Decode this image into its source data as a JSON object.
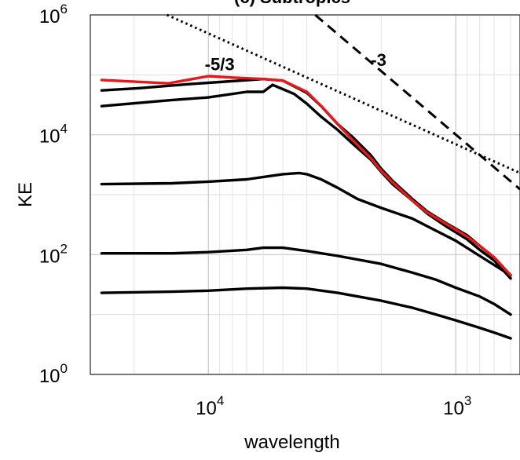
{
  "chart_data": {
    "type": "line",
    "title": "(c) Subtropics",
    "xlabel": "wavelength",
    "ylabel": "KE",
    "x_scale": "log",
    "x_reversed": true,
    "y_scale": "log",
    "xlim": [
      30000,
      550
    ],
    "ylim": [
      1,
      1000000
    ],
    "grid": true,
    "x_ticks": [
      {
        "value": 10000,
        "base": "10",
        "exp": "4"
      },
      {
        "value": 1000,
        "base": "10",
        "exp": "3"
      }
    ],
    "y_ticks": [
      {
        "value": 1,
        "base": "10",
        "exp": "0"
      },
      {
        "value": 100,
        "base": "10",
        "exp": "2"
      },
      {
        "value": 10000,
        "base": "10",
        "exp": "4"
      },
      {
        "value": 1000000,
        "base": "10",
        "exp": "6"
      }
    ],
    "annotations": [
      {
        "text": "-5/3",
        "x": 9000,
        "y": 120000
      },
      {
        "text": "-3",
        "x": 2050,
        "y": 140000
      }
    ],
    "reference_lines": [
      {
        "label": "-5/3",
        "style": "dotted",
        "x": [
          14700,
          550
        ],
        "y": [
          1000000,
          2300
        ]
      },
      {
        "label": "-3",
        "style": "dashed",
        "x": [
          3700,
          550
        ],
        "y": [
          1000000,
          1230
        ]
      }
    ],
    "colors": {
      "red_series": "#e31a1c",
      "black_series": "#000000",
      "grid": "#d9d9d9"
    },
    "series": [
      {
        "color": "#e31a1c",
        "x": [
          27000,
          14500,
          10000,
          8000,
          6000,
          5000,
          4000,
          3500,
          3000,
          2600,
          2200,
          2000,
          1800,
          1500,
          1300,
          1100,
          900,
          800,
          700,
          600
        ],
        "y": [
          82000,
          72000,
          95000,
          90000,
          85000,
          80000,
          52000,
          30000,
          15000,
          8000,
          4000,
          2500,
          1600,
          800,
          500,
          330,
          200,
          140,
          90,
          45
        ]
      },
      {
        "color": "#000000",
        "x": [
          27000,
          19000,
          12000,
          6000,
          5000,
          4000,
          3500,
          3000,
          2600,
          2200,
          2000,
          1800,
          1500,
          1300,
          1100,
          900,
          800,
          700,
          600
        ],
        "y": [
          55000,
          60000,
          70000,
          85000,
          80000,
          50000,
          30000,
          15000,
          9000,
          4500,
          2700,
          1700,
          850,
          520,
          340,
          210,
          140,
          90,
          45
        ]
      },
      {
        "color": "#000000",
        "x": [
          27000,
          14000,
          10000,
          7000,
          6000,
          5500,
          4500,
          4000,
          3500,
          3000,
          2600,
          2200,
          2000,
          1800,
          1500,
          1300,
          1100,
          900,
          800,
          700,
          600
        ],
        "y": [
          30000,
          38000,
          42000,
          52000,
          52000,
          68000,
          48000,
          33000,
          20000,
          12000,
          7000,
          3800,
          2400,
          1500,
          800,
          480,
          300,
          180,
          120,
          80,
          40
        ]
      },
      {
        "color": "#000000",
        "x": [
          27000,
          14000,
          10000,
          7000,
          5000,
          4300,
          4000,
          3500,
          3000,
          2500,
          2000,
          1500,
          1200,
          1000,
          800,
          600
        ],
        "y": [
          1500,
          1550,
          1650,
          1800,
          2200,
          2300,
          2200,
          1800,
          1300,
          850,
          600,
          400,
          250,
          170,
          95,
          45
        ]
      },
      {
        "color": "#000000",
        "x": [
          27000,
          14000,
          10000,
          7000,
          6000,
          5000,
          4000,
          3000,
          2000,
          1500,
          1200,
          1000,
          800,
          700,
          600
        ],
        "y": [
          105,
          105,
          110,
          120,
          130,
          130,
          115,
          95,
          70,
          50,
          38,
          28,
          20,
          15,
          10
        ]
      },
      {
        "color": "#000000",
        "x": [
          27000,
          14000,
          10000,
          7000,
          5000,
          4000,
          3000,
          2000,
          1500,
          1200,
          1000,
          800,
          700,
          600
        ],
        "y": [
          23,
          24,
          25,
          27,
          28,
          27,
          23,
          17,
          13,
          10,
          8,
          6,
          5,
          4
        ]
      }
    ]
  }
}
